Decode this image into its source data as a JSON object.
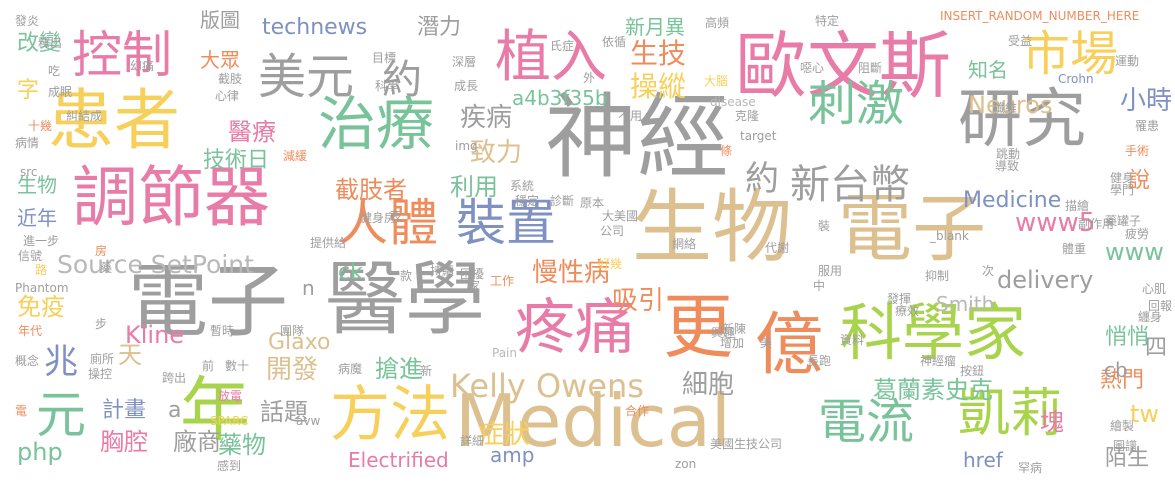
{
  "word_cloud": {
    "colors": {
      "gray": "#9e9e9e",
      "pink": "#e87ba8",
      "gold": "#f6d05a",
      "green": "#79c39b",
      "tan": "#ddc08f",
      "blue": "#7f90c2",
      "orange": "#ef8c5c",
      "lime": "#a8d44c",
      "lightgray": "#b8b8b8"
    },
    "words": [
      {
        "text": "神經",
        "color": "#9e9e9e"
      },
      {
        "text": "電子",
        "color": "#9e9e9e"
      },
      {
        "text": "醫學",
        "color": "#9e9e9e"
      },
      {
        "text": "生物",
        "color": "#ddc08f"
      },
      {
        "text": "電子",
        "color": "#ddc08f"
      },
      {
        "text": "歐文斯",
        "color": "#e87ba8"
      },
      {
        "text": "調節器",
        "color": "#e87ba8"
      },
      {
        "text": "患者",
        "color": "#f6d05a"
      },
      {
        "text": "Medical",
        "color": "#ddc08f"
      },
      {
        "text": "科學家",
        "color": "#a8d44c"
      },
      {
        "text": "研究",
        "color": "#9e9e9e"
      },
      {
        "text": "治療",
        "color": "#79c39b"
      },
      {
        "text": "疼痛",
        "color": "#e87ba8"
      },
      {
        "text": "方法",
        "color": "#f6d05a"
      },
      {
        "text": "億",
        "color": "#ef8c5c"
      },
      {
        "text": "更",
        "color": "#ef8c5c"
      },
      {
        "text": "年",
        "color": "#a8d44c"
      },
      {
        "text": "植入",
        "color": "#e87ba8"
      },
      {
        "text": "美元",
        "color": "#9e9e9e"
      },
      {
        "text": "控制",
        "color": "#e87ba8"
      },
      {
        "text": "人體",
        "color": "#ef8c5c"
      },
      {
        "text": "裝置",
        "color": "#7f90c2"
      },
      {
        "text": "市場",
        "color": "#f6d05a"
      },
      {
        "text": "刺激",
        "color": "#79c39b"
      },
      {
        "text": "電流",
        "color": "#79c39b"
      },
      {
        "text": "凱莉",
        "color": "#a8d44c"
      },
      {
        "text": "新台幣",
        "color": "#9e9e9e"
      },
      {
        "text": "約",
        "color": "#9e9e9e"
      },
      {
        "text": "約",
        "color": "#9e9e9e"
      },
      {
        "text": "元",
        "color": "#79c39b"
      },
      {
        "text": "兆",
        "color": "#7f90c2"
      },
      {
        "text": "Kelly Owens",
        "color": "#ddc08f"
      },
      {
        "text": "Source SetPoint",
        "color": "#b8b8b8"
      },
      {
        "text": "technews",
        "color": "#7f90c2"
      },
      {
        "text": "潛力",
        "color": "#9e9e9e"
      },
      {
        "text": "生技",
        "color": "#ef8c5c"
      },
      {
        "text": "操縱",
        "color": "#f6d05a"
      },
      {
        "text": "新月異",
        "color": "#79c39b"
      },
      {
        "text": "知名",
        "color": "#79c39b"
      },
      {
        "text": "Neuros",
        "color": "#ddc08f"
      },
      {
        "text": "小時",
        "color": "#7f90c2"
      },
      {
        "text": "a4b3f35b",
        "color": "#79c39b"
      },
      {
        "text": "疾病",
        "color": "#9e9e9e"
      },
      {
        "text": "致力",
        "color": "#ddc08f"
      },
      {
        "text": "醫療",
        "color": "#e87ba8"
      },
      {
        "text": "技術日",
        "color": "#79c39b"
      },
      {
        "text": "截肢者",
        "color": "#ef8c5c"
      },
      {
        "text": "利用",
        "color": "#79c39b"
      },
      {
        "text": "Medicine",
        "color": "#7f90c2"
      },
      {
        "text": "www5",
        "color": "#e87ba8"
      },
      {
        "text": "www",
        "color": "#79c39b"
      },
      {
        "text": "delivery",
        "color": "#9e9e9e"
      },
      {
        "text": "慢性病",
        "color": "#ef8c5c"
      },
      {
        "text": "吸引",
        "color": "#ef8c5c"
      },
      {
        "text": "Glaxo",
        "color": "#ddc08f"
      },
      {
        "text": "Smith",
        "color": "#b8b8b8"
      },
      {
        "text": "Kline",
        "color": "#e87ba8"
      },
      {
        "text": "開發",
        "color": "#ddc08f"
      },
      {
        "text": "搶進",
        "color": "#79c39b"
      },
      {
        "text": "細胞",
        "color": "#9e9e9e"
      },
      {
        "text": "葛蘭素史克",
        "color": "#79c39b"
      },
      {
        "text": "計畫",
        "color": "#7f90c2"
      },
      {
        "text": "話題",
        "color": "#9e9e9e"
      },
      {
        "text": "症狀",
        "color": "#f6d05a"
      },
      {
        "text": "胸腔",
        "color": "#e87ba8"
      },
      {
        "text": "廠商",
        "color": "#9e9e9e"
      },
      {
        "text": "藥物",
        "color": "#79c39b"
      },
      {
        "text": "Electrified",
        "color": "#e87ba8"
      },
      {
        "text": "amp",
        "color": "#7f90c2"
      },
      {
        "text": "php",
        "color": "#79c39b"
      },
      {
        "text": "href",
        "color": "#7f90c2"
      },
      {
        "text": "陌生",
        "color": "#9e9e9e"
      },
      {
        "text": "熱門",
        "color": "#ef8c5c"
      },
      {
        "text": "悄悄",
        "color": "#79c39b"
      },
      {
        "text": "tw",
        "color": "#f6d05a"
      },
      {
        "text": "塊",
        "color": "#e87ba8"
      },
      {
        "text": "cb",
        "color": "#9e9e9e"
      },
      {
        "text": "四",
        "color": "#9e9e9e"
      },
      {
        "text": "說",
        "color": "#ef8c5c"
      },
      {
        "text": "免疫",
        "color": "#f6d05a"
      },
      {
        "text": "天",
        "color": "#ddc08f"
      },
      {
        "text": "ck",
        "color": "#79c39b"
      },
      {
        "text": "n",
        "color": "#9e9e9e"
      },
      {
        "text": "a",
        "color": "#9e9e9e"
      },
      {
        "text": "改變",
        "color": "#79c39b"
      },
      {
        "text": "字",
        "color": "#f6d05a"
      },
      {
        "text": "大眾",
        "color": "#ef8c5c"
      },
      {
        "text": "版圖",
        "color": "#9e9e9e"
      },
      {
        "text": "生物",
        "color": "#79c39b"
      },
      {
        "text": "近年",
        "color": "#7f90c2"
      },
      {
        "text": "INSERT_RANDOM_NUMBER_HERE",
        "color": "#ef8c5c"
      },
      {
        "text": "發炎",
        "color": "#9e9e9e"
      },
      {
        "text": "釋出",
        "color": "#9e9e9e"
      },
      {
        "text": "高頻",
        "color": "#9e9e9e"
      },
      {
        "text": "特定",
        "color": "#9e9e9e"
      },
      {
        "text": "運動",
        "color": "#9e9e9e"
      },
      {
        "text": "氏症",
        "color": "#9e9e9e"
      },
      {
        "text": "依循",
        "color": "#9e9e9e"
      },
      {
        "text": "目標",
        "color": "#9e9e9e"
      },
      {
        "text": "深層",
        "color": "#9e9e9e"
      },
      {
        "text": "成長",
        "color": "#9e9e9e"
      },
      {
        "text": "外",
        "color": "#9e9e9e"
      },
      {
        "text": "大腦",
        "color": "#f6d05a"
      },
      {
        "text": "噁心",
        "color": "#9e9e9e"
      },
      {
        "text": "阻斷",
        "color": "#9e9e9e"
      },
      {
        "text": "受益",
        "color": "#9e9e9e"
      },
      {
        "text": "Crohn",
        "color": "#7f90c2"
      },
      {
        "text": "disease",
        "color": "#b8b8b8"
      },
      {
        "text": "克隆",
        "color": "#9e9e9e"
      },
      {
        "text": "不用",
        "color": "#9e9e9e"
      },
      {
        "text": "target",
        "color": "#9e9e9e"
      },
      {
        "text": "條",
        "color": "#ef8c5c"
      },
      {
        "text": "img",
        "color": "#9e9e9e"
      },
      {
        "text": "系統",
        "color": "#9e9e9e"
      },
      {
        "text": "診斷",
        "color": "#9e9e9e"
      },
      {
        "text": "原本",
        "color": "#9e9e9e"
      },
      {
        "text": "穩定",
        "color": "#9e9e9e"
      },
      {
        "text": "大美國",
        "color": "#9e9e9e"
      },
      {
        "text": "公司",
        "color": "#9e9e9e"
      },
      {
        "text": "幻痛",
        "color": "#9e9e9e"
      },
      {
        "text": "截肢",
        "color": "#9e9e9e"
      },
      {
        "text": "心律",
        "color": "#9e9e9e"
      },
      {
        "text": "成眠",
        "color": "#9e9e9e"
      },
      {
        "text": "吃",
        "color": "#9e9e9e"
      },
      {
        "text": "科學",
        "color": "#9e9e9e"
      },
      {
        "text": "十幾",
        "color": "#ef8c5c"
      },
      {
        "text": "病情",
        "color": "#9e9e9e"
      },
      {
        "text": "減緩",
        "color": "#ef8c5c"
      },
      {
        "text": "src",
        "color": "#9e9e9e"
      },
      {
        "text": "健身房",
        "color": "#9e9e9e"
      },
      {
        "text": "夜",
        "color": "#9e9e9e"
      },
      {
        "text": "提供給",
        "color": "#9e9e9e"
      },
      {
        "text": "進一步",
        "color": "#9e9e9e"
      },
      {
        "text": "信號",
        "color": "#9e9e9e"
      },
      {
        "text": "房",
        "color": "#ef8c5c"
      },
      {
        "text": "路",
        "color": "#f6d05a"
      },
      {
        "text": "Phantom",
        "color": "#9e9e9e"
      },
      {
        "text": "藥",
        "color": "#9e9e9e"
      },
      {
        "text": "暫時",
        "color": "#9e9e9e"
      },
      {
        "text": "團隊",
        "color": "#9e9e9e"
      },
      {
        "text": "步",
        "color": "#9e9e9e"
      },
      {
        "text": "年代",
        "color": "#ef8c5c"
      },
      {
        "text": "概念",
        "color": "#9e9e9e"
      },
      {
        "text": "廁所",
        "color": "#9e9e9e"
      },
      {
        "text": "操控",
        "color": "#9e9e9e"
      },
      {
        "text": "跨出",
        "color": "#9e9e9e"
      },
      {
        "text": "數十",
        "color": "#9e9e9e"
      },
      {
        "text": "前",
        "color": "#9e9e9e"
      },
      {
        "text": "放電",
        "color": "#e87ba8"
      },
      {
        "text": "病魔",
        "color": "#9e9e9e"
      },
      {
        "text": "新",
        "color": "#9e9e9e"
      },
      {
        "text": "電",
        "color": "#ef8c5c"
      },
      {
        "text": "SPARC",
        "color": "#f6d05a"
      },
      {
        "text": "avw",
        "color": "#9e9e9e"
      },
      {
        "text": "感到",
        "color": "#9e9e9e"
      },
      {
        "text": "詳細",
        "color": "#9e9e9e"
      },
      {
        "text": "合作",
        "color": "#ef8c5c"
      },
      {
        "text": "zon",
        "color": "#9e9e9e"
      },
      {
        "text": "美國生技公司",
        "color": "#9e9e9e"
      },
      {
        "text": "款",
        "color": "#9e9e9e"
      },
      {
        "text": "持續",
        "color": "#9e9e9e"
      },
      {
        "text": "困擾",
        "color": "#9e9e9e"
      },
      {
        "text": "家",
        "color": "#9e9e9e"
      },
      {
        "text": "工作",
        "color": "#ef8c5c"
      },
      {
        "text": "好幾",
        "color": "#f6d05a"
      },
      {
        "text": "網絡",
        "color": "#9e9e9e"
      },
      {
        "text": "代謝",
        "color": "#9e9e9e"
      },
      {
        "text": "興趣",
        "color": "#9e9e9e"
      },
      {
        "text": "增加",
        "color": "#9e9e9e"
      },
      {
        "text": "新陳",
        "color": "#9e9e9e"
      },
      {
        "text": "Pain",
        "color": "#b8b8b8"
      },
      {
        "text": "美",
        "color": "#9e9e9e"
      },
      {
        "text": "中",
        "color": "#9e9e9e"
      },
      {
        "text": "發揮",
        "color": "#9e9e9e"
      },
      {
        "text": "療效",
        "color": "#9e9e9e"
      },
      {
        "text": "資料",
        "color": "#9e9e9e"
      },
      {
        "text": "服用",
        "color": "#9e9e9e"
      },
      {
        "text": "抑制",
        "color": "#9e9e9e"
      },
      {
        "text": "長跑",
        "color": "#9e9e9e"
      },
      {
        "text": "神經瘤",
        "color": "#9e9e9e"
      },
      {
        "text": "按鈕",
        "color": "#9e9e9e"
      },
      {
        "text": "繪製",
        "color": "#9e9e9e"
      },
      {
        "text": "圖譜",
        "color": "#9e9e9e"
      },
      {
        "text": "罕病",
        "color": "#9e9e9e"
      },
      {
        "text": "心肌",
        "color": "#9e9e9e"
      },
      {
        "text": "纏身",
        "color": "#9e9e9e"
      },
      {
        "text": "回報",
        "color": "#9e9e9e"
      },
      {
        "text": "次",
        "color": "#9e9e9e"
      },
      {
        "text": "體重",
        "color": "#9e9e9e"
      },
      {
        "text": "疲勞",
        "color": "#9e9e9e"
      },
      {
        "text": "_blank",
        "color": "#9e9e9e"
      },
      {
        "text": "描繪",
        "color": "#9e9e9e"
      },
      {
        "text": "副作用",
        "color": "#9e9e9e"
      },
      {
        "text": "藥罐子",
        "color": "#9e9e9e"
      },
      {
        "text": "裝",
        "color": "#9e9e9e"
      },
      {
        "text": "健身",
        "color": "#9e9e9e"
      },
      {
        "text": "學門",
        "color": "#9e9e9e"
      },
      {
        "text": "導致",
        "color": "#9e9e9e"
      },
      {
        "text": "跳動",
        "color": "#9e9e9e"
      },
      {
        "text": "罹患",
        "color": "#9e9e9e"
      },
      {
        "text": "手術",
        "color": "#ef8c5c"
      },
      {
        "text": "纖維",
        "color": "#9e9e9e"
      },
      {
        "text": "糾結成",
        "color": "#9e9e9e"
      }
    ]
  }
}
